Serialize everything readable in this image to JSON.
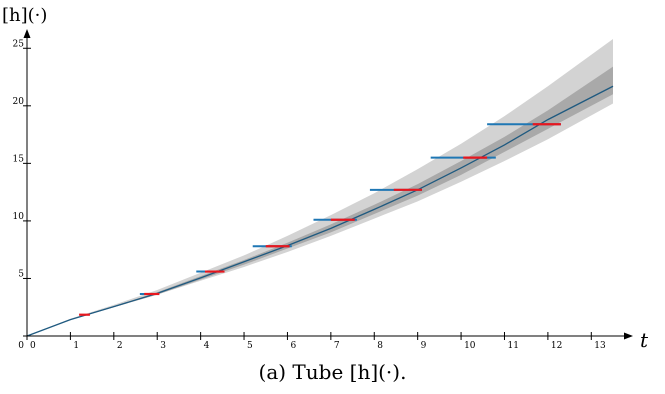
{
  "caption": "(a) Tube [h](·).",
  "chart_data": {
    "type": "area",
    "title": "",
    "ylabel": "[h](·)",
    "xlabel": "t",
    "xlim": [
      0,
      13.5
    ],
    "ylim": [
      0,
      26.5
    ],
    "xticks": [
      0,
      1,
      2,
      3,
      4,
      5,
      6,
      7,
      8,
      9,
      10,
      11,
      12,
      13
    ],
    "yticks": [
      0,
      5,
      10,
      15,
      20,
      25
    ],
    "grid": false,
    "colors": {
      "outer_tube": "#d3d3d3",
      "inner_tube": "#a9a9a9",
      "trajectory": "#1f5a80",
      "blue_segments": "#1f77b4",
      "red_segments": "#e8171e"
    },
    "series": [
      {
        "role": "outer-tube",
        "x": [
          0,
          1,
          2,
          3,
          4,
          5,
          6,
          7,
          8,
          9,
          10,
          11,
          12,
          13.5
        ],
        "upper": [
          0,
          1.5,
          2.7,
          4.0,
          5.5,
          7.0,
          8.7,
          10.5,
          12.4,
          14.5,
          16.7,
          19.1,
          21.7,
          25.8
        ],
        "lower": [
          0,
          1.4,
          2.5,
          3.6,
          4.8,
          6.0,
          7.3,
          8.7,
          10.2,
          11.7,
          13.4,
          15.2,
          17.1,
          20.2
        ]
      },
      {
        "role": "inner-tube",
        "x": [
          0,
          1,
          2,
          3,
          4,
          5,
          6,
          7,
          8,
          9,
          10,
          11,
          12,
          13.5
        ],
        "upper": [
          0,
          1.45,
          2.6,
          3.8,
          5.2,
          6.6,
          8.1,
          9.7,
          11.4,
          13.2,
          15.2,
          17.3,
          19.6,
          23.4
        ],
        "lower": [
          0,
          1.4,
          2.5,
          3.6,
          4.9,
          6.2,
          7.6,
          9.0,
          10.6,
          12.2,
          14.0,
          16.0,
          18.0,
          21.0
        ]
      },
      {
        "role": "trajectory",
        "x": [
          0,
          1,
          2,
          3,
          4,
          5,
          6,
          7,
          8,
          9,
          10,
          11,
          12,
          13.5
        ],
        "y": [
          0,
          1.42,
          2.55,
          3.7,
          5.05,
          6.45,
          7.85,
          9.35,
          11.0,
          12.7,
          14.6,
          16.6,
          18.8,
          21.7
        ]
      }
    ],
    "blue_segments": [
      {
        "x0": 2.6,
        "x1": 3.0,
        "y": 3.65
      },
      {
        "x0": 3.9,
        "x1": 4.5,
        "y": 5.6
      },
      {
        "x0": 5.2,
        "x1": 6.1,
        "y": 7.8
      },
      {
        "x0": 6.6,
        "x1": 7.6,
        "y": 10.1
      },
      {
        "x0": 7.9,
        "x1": 9.1,
        "y": 12.7
      },
      {
        "x0": 9.3,
        "x1": 10.8,
        "y": 15.5
      },
      {
        "x0": 10.6,
        "x1": 12.3,
        "y": 18.4
      }
    ],
    "red_segments": [
      {
        "x0": 1.2,
        "x1": 1.45,
        "y": 1.85
      },
      {
        "x0": 2.7,
        "x1": 3.05,
        "y": 3.65
      },
      {
        "x0": 4.1,
        "x1": 4.55,
        "y": 5.6
      },
      {
        "x0": 5.5,
        "x1": 6.05,
        "y": 7.8
      },
      {
        "x0": 7.0,
        "x1": 7.55,
        "y": 10.1
      },
      {
        "x0": 8.45,
        "x1": 9.1,
        "y": 12.7
      },
      {
        "x0": 10.05,
        "x1": 10.6,
        "y": 15.5
      },
      {
        "x0": 11.65,
        "x1": 12.3,
        "y": 18.4
      }
    ]
  }
}
